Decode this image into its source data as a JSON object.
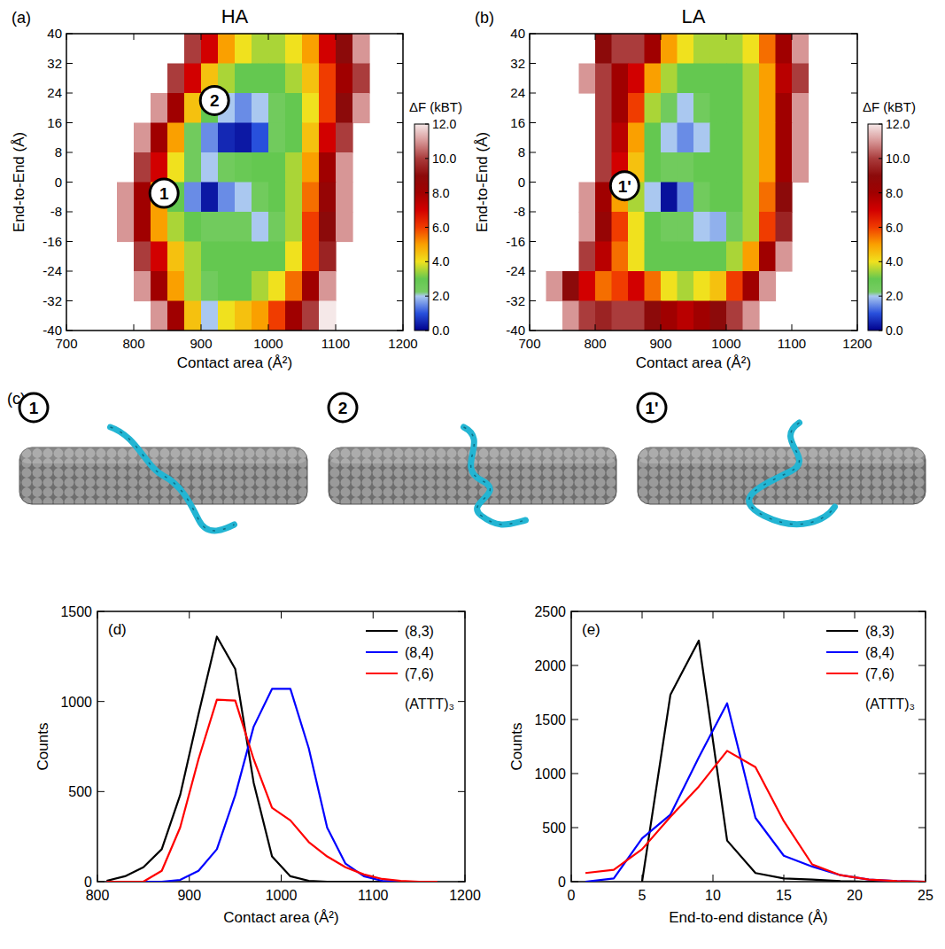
{
  "chart_data": [
    {
      "type": "heatmap",
      "panel_label": "(a)",
      "title": "HA",
      "x_label": "Contact area (Å²)",
      "y_label": "End-to-End (Å)",
      "xlim": [
        700,
        1200
      ],
      "xticks": [
        700,
        800,
        900,
        1000,
        1100,
        1200
      ],
      "ylim": [
        -40,
        40
      ],
      "yticks": [
        -40,
        -32,
        -24,
        -16,
        -8,
        0,
        8,
        16,
        24,
        32,
        40
      ],
      "x": [
        712.5,
        737.5,
        762.5,
        787.5,
        812.5,
        837.5,
        862.5,
        887.5,
        912.5,
        937.5,
        962.5,
        987.5,
        1012.5,
        1037.5,
        1062.5,
        1087.5,
        1112.5,
        1137.5,
        1162.5,
        1187.5
      ],
      "y": [
        36,
        28,
        20,
        12,
        4,
        -4,
        -12,
        -20,
        -28,
        -36
      ],
      "values": [
        [
          null,
          null,
          null,
          null,
          null,
          null,
          null,
          10,
          7,
          5,
          4,
          3.5,
          3.5,
          4,
          5,
          7,
          9,
          11,
          null,
          null
        ],
        [
          null,
          null,
          null,
          null,
          null,
          null,
          10,
          7,
          4.5,
          3.5,
          3,
          3,
          3,
          3.5,
          4.5,
          6,
          8,
          10,
          null,
          null
        ],
        [
          null,
          null,
          null,
          null,
          null,
          11,
          8,
          4.5,
          3,
          2,
          1.5,
          2,
          2.5,
          3,
          4,
          6,
          9,
          11,
          null,
          null
        ],
        [
          null,
          null,
          null,
          null,
          11,
          8,
          5,
          2.5,
          1.5,
          0.5,
          0.3,
          1,
          2.5,
          3,
          4.5,
          7,
          10,
          null,
          null,
          null
        ],
        [
          null,
          null,
          null,
          null,
          10,
          7,
          4,
          2.5,
          2,
          2.5,
          2.8,
          3,
          3,
          3.5,
          5,
          8,
          11,
          null,
          null,
          null
        ],
        [
          null,
          null,
          null,
          11,
          8,
          5,
          3,
          1.5,
          0.3,
          1.5,
          2,
          2.5,
          3,
          3.5,
          5.5,
          8.5,
          11,
          null,
          null,
          null
        ],
        [
          null,
          null,
          null,
          11,
          8,
          5,
          3.5,
          3,
          2.5,
          2.5,
          2.5,
          2,
          2.5,
          3.5,
          6,
          9,
          11,
          null,
          null,
          null
        ],
        [
          null,
          null,
          null,
          null,
          10,
          7,
          4.5,
          3.5,
          3,
          3,
          3,
          3,
          3,
          4,
          6,
          9.5,
          null,
          null,
          null,
          null
        ],
        [
          null,
          null,
          null,
          null,
          11,
          8,
          5,
          3.5,
          2.5,
          3,
          3,
          3.5,
          4,
          5.5,
          8,
          11,
          null,
          null,
          null,
          null
        ],
        [
          null,
          null,
          null,
          null,
          null,
          11,
          8,
          4.5,
          2,
          4,
          4.5,
          5,
          6,
          8,
          10,
          12,
          null,
          null,
          null,
          null
        ]
      ],
      "colorbar": {
        "title": "ΔF (kBT)",
        "range": [
          0,
          12
        ],
        "ticks": [
          {
            "value": 0,
            "label": "0.0"
          },
          {
            "value": 2,
            "label": "2.0"
          },
          {
            "value": 4,
            "label": "4.0"
          },
          {
            "value": 6,
            "label": "6.0"
          },
          {
            "value": 8,
            "label": "8.0"
          },
          {
            "value": 10,
            "label": "10.0"
          },
          {
            "value": 12,
            "label": "12.0"
          }
        ]
      },
      "annotations": [
        {
          "text": "2",
          "x": 920,
          "y": 22
        },
        {
          "text": "1",
          "x": 845,
          "y": -3
        }
      ]
    },
    {
      "type": "heatmap",
      "panel_label": "(b)",
      "title": "LA",
      "x_label": "Contact area (Å²)",
      "y_label": "End-to-End (Å)",
      "xlim": [
        700,
        1200
      ],
      "xticks": [
        700,
        800,
        900,
        1000,
        1100,
        1200
      ],
      "ylim": [
        -40,
        40
      ],
      "yticks": [
        -40,
        -32,
        -24,
        -16,
        -8,
        0,
        8,
        16,
        24,
        32,
        40
      ],
      "x": [
        712.5,
        737.5,
        762.5,
        787.5,
        812.5,
        837.5,
        862.5,
        887.5,
        912.5,
        937.5,
        962.5,
        987.5,
        1012.5,
        1037.5,
        1062.5,
        1087.5,
        1112.5,
        1137.5,
        1162.5,
        1187.5
      ],
      "y": [
        36,
        28,
        20,
        12,
        4,
        -4,
        -12,
        -20,
        -28,
        -36
      ],
      "values": [
        [
          null,
          null,
          null,
          null,
          9,
          10,
          10,
          8,
          5,
          4,
          3.5,
          3.5,
          3.5,
          4,
          5.5,
          8,
          11,
          null,
          null,
          null
        ],
        [
          null,
          null,
          null,
          11,
          10,
          8,
          7,
          5,
          3.5,
          3,
          3,
          3,
          3,
          3.5,
          5,
          7.5,
          10,
          null,
          null,
          null
        ],
        [
          null,
          null,
          null,
          null,
          10,
          8,
          6,
          3.5,
          2.5,
          2,
          2.5,
          3,
          3,
          3.5,
          5,
          8,
          11,
          null,
          null,
          null
        ],
        [
          null,
          null,
          null,
          null,
          10,
          7.5,
          5,
          3,
          2,
          1.5,
          2,
          3,
          3,
          3.5,
          5,
          8,
          11,
          null,
          null,
          null
        ],
        [
          null,
          null,
          null,
          null,
          10,
          7,
          4.5,
          3,
          2.5,
          2.5,
          3,
          3,
          3,
          3.5,
          5,
          8,
          11,
          null,
          null,
          null
        ],
        [
          null,
          null,
          null,
          11,
          8,
          5,
          3.5,
          2,
          0.2,
          1.5,
          2.5,
          3,
          3,
          3.5,
          5.5,
          9,
          null,
          null,
          null,
          null
        ],
        [
          null,
          null,
          null,
          11,
          8.5,
          6,
          4,
          3,
          2.5,
          2.5,
          2,
          1.8,
          2.5,
          3.5,
          6,
          9.5,
          null,
          null,
          null,
          null
        ],
        [
          null,
          null,
          null,
          10,
          7.5,
          5.5,
          4,
          3,
          3,
          3,
          3,
          3,
          3.5,
          5,
          8,
          11,
          null,
          null,
          null,
          null
        ],
        [
          null,
          11,
          9,
          7,
          5.5,
          6,
          7,
          5.5,
          4,
          3.5,
          4,
          4.5,
          6,
          8,
          11,
          null,
          null,
          null,
          null,
          null
        ],
        [
          null,
          null,
          11,
          10,
          9.5,
          10,
          10,
          9,
          8,
          7.5,
          8,
          9,
          10,
          11,
          null,
          null,
          null,
          null,
          null,
          null
        ]
      ],
      "colorbar": {
        "title": "ΔF (kBT)",
        "range": [
          0,
          12
        ],
        "ticks": [
          {
            "value": 0,
            "label": "0.0"
          },
          {
            "value": 2,
            "label": "2.0"
          },
          {
            "value": 4,
            "label": "4.0"
          },
          {
            "value": 6,
            "label": "6.0"
          },
          {
            "value": 8,
            "label": "8.0"
          },
          {
            "value": 10,
            "label": "10.0"
          },
          {
            "value": 12,
            "label": "12.0"
          }
        ]
      },
      "annotations": [
        {
          "text": "1'",
          "x": 845,
          "y": -1
        }
      ]
    },
    {
      "type": "line",
      "panel_label": "(d)",
      "x_label": "Contact area (Å²)",
      "y_label": "Counts",
      "annotation": "(ATTT)₃",
      "legend": "upper right",
      "xlim": [
        800,
        1200
      ],
      "xticks": [
        800,
        900,
        1000,
        1100,
        1200
      ],
      "ylim": [
        0,
        1500
      ],
      "yticks": [
        0,
        500,
        1000,
        1500
      ],
      "x": [
        810,
        830,
        850,
        870,
        890,
        910,
        930,
        950,
        970,
        990,
        1010,
        1030,
        1050,
        1070,
        1090,
        1110,
        1130,
        1150,
        1170
      ],
      "series": [
        {
          "name": "(8,3)",
          "color": "#000000",
          "values": [
            5,
            30,
            80,
            180,
            480,
            930,
            1360,
            1180,
            550,
            140,
            30,
            5,
            0,
            0,
            0,
            0,
            0,
            0,
            0
          ]
        },
        {
          "name": "(8,4)",
          "color": "#0000ff",
          "values": [
            0,
            0,
            0,
            0,
            10,
            60,
            180,
            480,
            860,
            1070,
            1070,
            740,
            300,
            100,
            30,
            5,
            0,
            0,
            0
          ]
        },
        {
          "name": "(7,6)",
          "color": "#ff0000",
          "values": [
            0,
            0,
            0,
            60,
            300,
            680,
            1010,
            1005,
            680,
            410,
            340,
            220,
            140,
            80,
            40,
            15,
            5,
            0,
            0
          ]
        }
      ]
    },
    {
      "type": "line",
      "panel_label": "(e)",
      "x_label": "End-to-end distance (Å)",
      "y_label": "Counts",
      "annotation": "(ATTT)₃",
      "legend": "upper right",
      "xlim": [
        0,
        25
      ],
      "xticks": [
        0,
        5,
        10,
        15,
        20,
        25
      ],
      "ylim": [
        0,
        2500
      ],
      "yticks": [
        0,
        500,
        1000,
        1500,
        2000,
        2500
      ],
      "x": [
        1,
        3,
        5,
        7,
        9,
        11,
        13,
        15,
        17,
        19,
        21,
        23,
        25
      ],
      "series": [
        {
          "name": "(8,3)",
          "color": "#000000",
          "values": [
            null,
            null,
            0,
            1730,
            2230,
            380,
            80,
            30,
            20,
            5,
            0,
            0,
            0
          ]
        },
        {
          "name": "(8,4)",
          "color": "#0000ff",
          "values": [
            0,
            30,
            400,
            620,
            1150,
            1650,
            590,
            240,
            140,
            60,
            20,
            5,
            0
          ]
        },
        {
          "name": "(7,6)",
          "color": "#ff0000",
          "values": [
            80,
            110,
            300,
            600,
            880,
            1210,
            1060,
            560,
            160,
            60,
            20,
            5,
            0
          ]
        }
      ]
    }
  ],
  "structures": {
    "panel_label": "(c)",
    "items": [
      "1",
      "2",
      "1'"
    ]
  }
}
